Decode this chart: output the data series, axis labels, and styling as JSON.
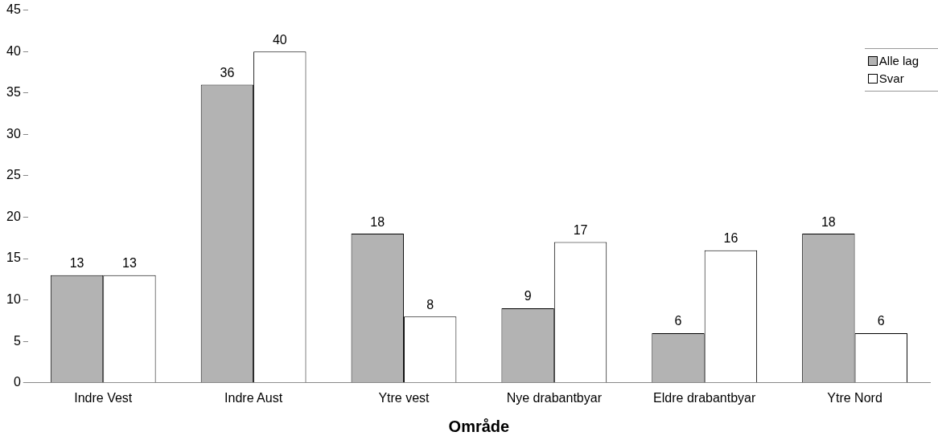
{
  "chart_data": {
    "type": "bar",
    "xlabel": "Område",
    "categories": [
      "Indre Vest",
      "Indre Aust",
      "Ytre vest",
      "Nye drabantbyar",
      "Eldre drabantbyar",
      "Ytre Nord"
    ],
    "series": [
      {
        "name": "Alle lag",
        "color": "#b3b3b3",
        "values": [
          13,
          36,
          18,
          9,
          6,
          18
        ]
      },
      {
        "name": "Svar",
        "color": "#ffffff",
        "values": [
          13,
          40,
          8,
          17,
          16,
          6
        ]
      }
    ],
    "ylim": [
      0,
      45
    ],
    "yticks": [
      0,
      5,
      10,
      15,
      20,
      25,
      30,
      35,
      40,
      45
    ],
    "grid": false,
    "legend": "top right",
    "data_labels": true
  }
}
